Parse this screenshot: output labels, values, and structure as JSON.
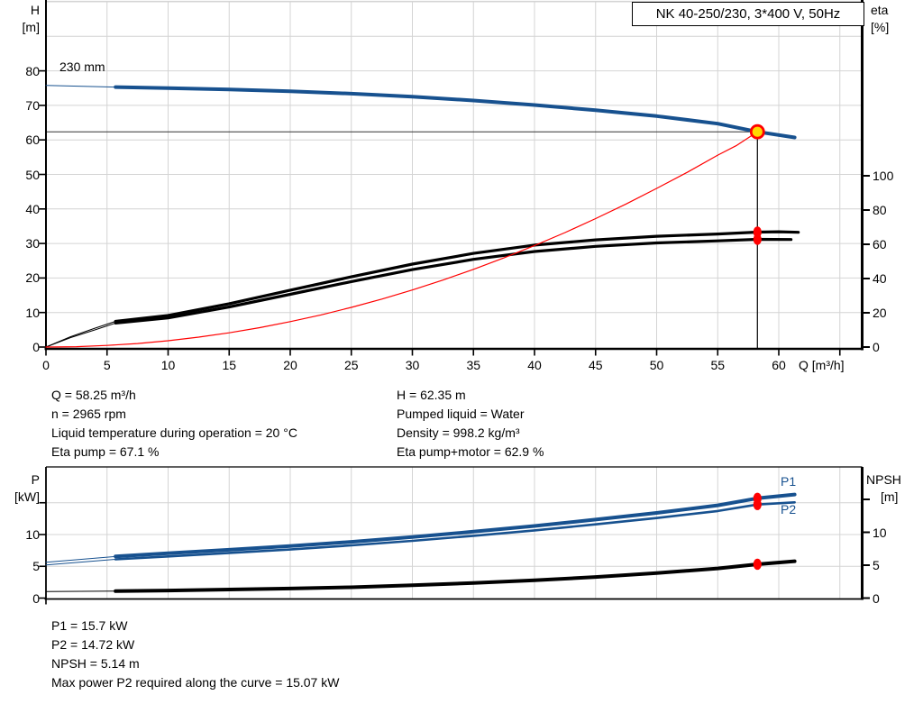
{
  "title_box": "NK 40-250/230, 3*400 V, 50Hz",
  "colors": {
    "blue": "#17518F",
    "red": "#FF0000",
    "yellow": "#FFD800",
    "black": "#000000",
    "grid": "#D4D4D4",
    "axis": "#000000"
  },
  "top_chart": {
    "impeller_label": "230 mm",
    "left_axis": {
      "name": "H",
      "unit": "[m]",
      "ticks": [
        0,
        10,
        20,
        30,
        40,
        50,
        60,
        70,
        80
      ]
    },
    "right_axis": {
      "name": "eta",
      "unit": "[%]",
      "ticks": [
        0,
        20,
        40,
        60,
        80,
        100
      ]
    },
    "x_axis": {
      "label": "Q [m³/h]",
      "labeled_ticks": [
        0,
        5,
        10,
        15,
        20,
        25,
        30,
        35,
        40,
        45,
        50,
        55,
        60
      ],
      "unlabeled_ticks": [
        65
      ]
    }
  },
  "bottom_chart": {
    "left_axis": {
      "name": "P",
      "unit": "[kW]",
      "ticks": [
        0,
        5,
        10
      ],
      "unlabeled_ticks": [
        15
      ]
    },
    "right_axis": {
      "name": "NPSH",
      "unit": "[m]",
      "ticks": [
        0,
        5,
        10
      ],
      "unlabeled_ticks": [
        15
      ]
    },
    "p1_label": "P1",
    "p2_label": "P2"
  },
  "info_top_left": [
    "Q = 58.25 m³/h",
    "n = 2965 rpm",
    "Liquid temperature during operation = 20 °C",
    "Eta pump = 67.1 %"
  ],
  "info_top_right": [
    "H = 62.35 m",
    "Pumped liquid = Water",
    "Density = 998.2 kg/m³",
    "Eta pump+motor = 62.9 %"
  ],
  "info_bottom": [
    "P1 = 15.7 kW",
    "P2 = 14.72 kW",
    "NPSH = 5.14 m",
    "Max power P2 required along the curve = 15.07 kW"
  ],
  "chart_data": [
    {
      "type": "line",
      "title": "QH / efficiency curves, NK 40-250/230 at 2965 rpm",
      "xlabel": "Q [m³/h]",
      "xlim": [
        0,
        67
      ],
      "y_left": {
        "label": "H [m]",
        "lim": [
          0,
          100
        ],
        "grid_step": 10
      },
      "y_right": {
        "label": "eta [%]",
        "lim": [
          0,
          100
        ],
        "tick_step": 20
      },
      "grid": true,
      "series": [
        {
          "name": "qh-230mm",
          "yaxis": "H",
          "color": "blue",
          "width": 4,
          "lead": [
            [
              0,
              75.8
            ],
            [
              5.7,
              75.3
            ]
          ],
          "points": [
            [
              5.7,
              75.3
            ],
            [
              10,
              75.0
            ],
            [
              15,
              74.6
            ],
            [
              20,
              74.1
            ],
            [
              25,
              73.4
            ],
            [
              30,
              72.5
            ],
            [
              35,
              71.4
            ],
            [
              40,
              70.1
            ],
            [
              45,
              68.6
            ],
            [
              50,
              66.9
            ],
            [
              55,
              64.7
            ],
            [
              58.25,
              62.35
            ],
            [
              61.3,
              60.7
            ]
          ]
        },
        {
          "name": "eta-pump",
          "yaxis": "eta",
          "color": "black",
          "width": 3.2,
          "lead": [
            [
              0,
              0
            ],
            [
              2,
              6
            ],
            [
              4,
              11
            ],
            [
              5.7,
              15
            ]
          ],
          "points": [
            [
              5.7,
              15
            ],
            [
              10,
              18.4
            ],
            [
              15,
              25.3
            ],
            [
              20,
              33.2
            ],
            [
              25,
              41
            ],
            [
              30,
              48.4
            ],
            [
              35,
              54.7
            ],
            [
              40,
              59.5
            ],
            [
              45,
              62.6
            ],
            [
              50,
              64.7
            ],
            [
              55,
              66
            ],
            [
              58.25,
              67.1
            ],
            [
              60,
              67.3
            ],
            [
              61.6,
              67.0
            ]
          ]
        },
        {
          "name": "eta-pump-motor",
          "yaxis": "eta",
          "color": "black",
          "width": 3.2,
          "lead": [
            [
              0,
              0
            ],
            [
              2,
              5.5
            ],
            [
              4,
              10
            ],
            [
              5.7,
              14
            ]
          ],
          "points": [
            [
              5.7,
              14
            ],
            [
              10,
              17
            ],
            [
              15,
              23.4
            ],
            [
              20,
              30.8
            ],
            [
              25,
              38.2
            ],
            [
              30,
              45.2
            ],
            [
              35,
              51.2
            ],
            [
              40,
              55.8
            ],
            [
              45,
              58.8
            ],
            [
              50,
              60.8
            ],
            [
              55,
              62
            ],
            [
              58.25,
              62.9
            ],
            [
              61,
              62.8
            ]
          ]
        },
        {
          "name": "system-curve",
          "yaxis": "H",
          "color": "red",
          "width": 1.2,
          "lead": [],
          "points": [
            [
              0,
              0
            ],
            [
              2.5,
              0.11
            ],
            [
              5,
              0.46
            ],
            [
              7.5,
              1.03
            ],
            [
              10,
              1.84
            ],
            [
              12.5,
              2.87
            ],
            [
              15,
              4.13
            ],
            [
              17.5,
              5.62
            ],
            [
              20,
              7.35
            ],
            [
              22.5,
              9.3
            ],
            [
              25,
              11.48
            ],
            [
              27.5,
              13.89
            ],
            [
              30,
              16.54
            ],
            [
              32.5,
              19.4
            ],
            [
              35,
              22.51
            ],
            [
              37.5,
              25.82
            ],
            [
              40,
              29.4
            ],
            [
              42.5,
              33.17
            ],
            [
              45,
              37.21
            ],
            [
              47.5,
              41.43
            ],
            [
              50,
              45.94
            ],
            [
              52.5,
              50.6
            ],
            [
              55,
              55.58
            ],
            [
              56.5,
              58.3
            ],
            [
              58.25,
              62.35
            ]
          ]
        }
      ],
      "duty_point": {
        "Q": 58.25,
        "H": 62.35,
        "eta_pump": 67.1,
        "eta_pump_motor": 62.9
      },
      "guides": {
        "h_line_H": 62.35,
        "v_line_Q": 58.25
      },
      "markers": [
        {
          "name": "duty-point",
          "style": "duty",
          "q": 58.25,
          "value": 62.35,
          "yaxis": "H"
        },
        {
          "name": "eta-pump-point",
          "style": "dot",
          "q": 58.25,
          "value": 67.1,
          "yaxis": "eta"
        },
        {
          "name": "eta-pump-motor-point",
          "style": "dot",
          "q": 58.25,
          "value": 62.9,
          "yaxis": "eta"
        }
      ]
    },
    {
      "type": "line",
      "title": "Power and NPSH curves",
      "xlabel": "Q [m³/h]",
      "xlim": [
        0,
        67
      ],
      "y_left": {
        "label": "P [kW]",
        "lim": [
          0,
          20
        ],
        "grid_step": 5
      },
      "y_right": {
        "label": "NPSH [m]",
        "lim": [
          0,
          20
        ],
        "tick_step": 5
      },
      "grid": true,
      "series": [
        {
          "name": "p1",
          "yaxis": "P",
          "color": "blue",
          "width": 4,
          "lead": [
            [
              0,
              5.65
            ],
            [
              5.7,
              6.55
            ]
          ],
          "points": [
            [
              5.7,
              6.55
            ],
            [
              10,
              7.05
            ],
            [
              15,
              7.6
            ],
            [
              20,
              8.2
            ],
            [
              25,
              8.85
            ],
            [
              30,
              9.6
            ],
            [
              35,
              10.45
            ],
            [
              40,
              11.35
            ],
            [
              45,
              12.35
            ],
            [
              50,
              13.4
            ],
            [
              55,
              14.6
            ],
            [
              58.25,
              15.7
            ],
            [
              61.3,
              16.3
            ]
          ]
        },
        {
          "name": "p2",
          "yaxis": "P",
          "color": "blue",
          "width": 2.6,
          "lead": [
            [
              0,
              5.2
            ],
            [
              5.7,
              6.1
            ]
          ],
          "points": [
            [
              5.7,
              6.1
            ],
            [
              10,
              6.55
            ],
            [
              15,
              7.1
            ],
            [
              20,
              7.65
            ],
            [
              25,
              8.3
            ],
            [
              30,
              9.0
            ],
            [
              35,
              9.8
            ],
            [
              40,
              10.65
            ],
            [
              45,
              11.6
            ],
            [
              50,
              12.6
            ],
            [
              55,
              13.7
            ],
            [
              58.25,
              14.72
            ],
            [
              61.3,
              15.07
            ]
          ]
        },
        {
          "name": "npsh",
          "yaxis": "NPSH",
          "color": "black",
          "width": 4,
          "lead": [
            [
              0,
              1.0
            ],
            [
              5.7,
              1.05
            ]
          ],
          "points": [
            [
              5.7,
              1.05
            ],
            [
              10,
              1.15
            ],
            [
              15,
              1.3
            ],
            [
              20,
              1.45
            ],
            [
              25,
              1.65
            ],
            [
              30,
              1.95
            ],
            [
              35,
              2.3
            ],
            [
              40,
              2.7
            ],
            [
              45,
              3.2
            ],
            [
              50,
              3.8
            ],
            [
              55,
              4.5
            ],
            [
              58.25,
              5.14
            ],
            [
              61.3,
              5.6
            ]
          ]
        }
      ],
      "markers": [
        {
          "name": "p1-point",
          "style": "dot",
          "q": 58.25,
          "value": 15.7,
          "yaxis": "P"
        },
        {
          "name": "p2-point",
          "style": "dot",
          "q": 58.25,
          "value": 14.72,
          "yaxis": "P"
        },
        {
          "name": "npsh-point",
          "style": "dot",
          "q": 58.25,
          "value": 5.14,
          "yaxis": "NPSH"
        }
      ]
    }
  ]
}
